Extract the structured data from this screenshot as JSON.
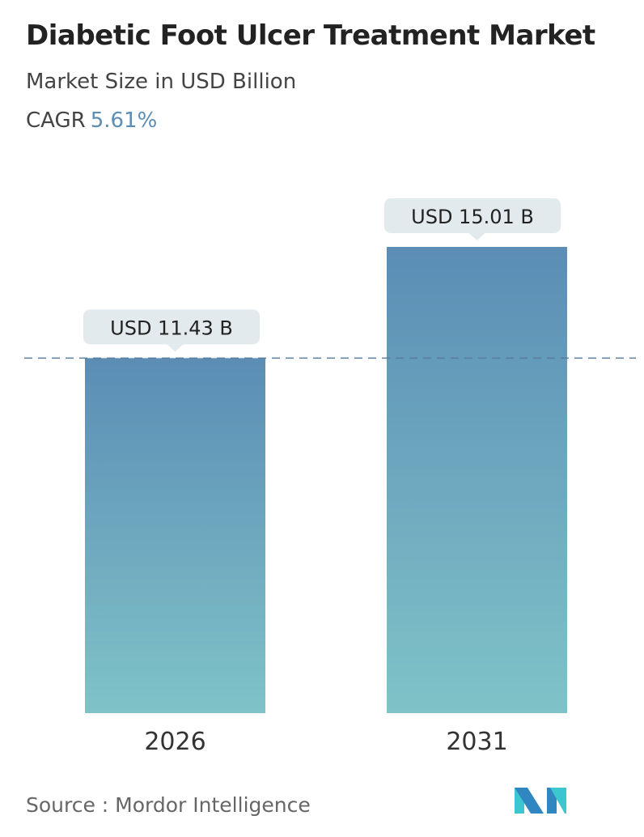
{
  "header": {
    "title": "Diabetic Foot Ulcer Treatment Market",
    "subtitle": "Market Size in USD Billion",
    "cagr_label": "CAGR",
    "cagr_value": "5.61%"
  },
  "chart_data": {
    "type": "bar",
    "categories": [
      "2026",
      "2031"
    ],
    "values": [
      11.43,
      15.01
    ],
    "data_labels": [
      "USD 11.43 B",
      "USD 15.01 B"
    ],
    "ylim": [
      0,
      15.01
    ],
    "grid": false,
    "reference_line": {
      "value": 11.43,
      "style": "dashed"
    },
    "colors": {
      "bar_top": "#5b8db5",
      "bar_bottom": "#7fc3c8",
      "label_bg": "#e3eaee",
      "cagr": "#5b8db5",
      "ref_line": "#5b7f9a"
    }
  },
  "footer": {
    "source": "Source :  Mordor Intelligence",
    "logo": "Mordor Intelligence logo"
  }
}
